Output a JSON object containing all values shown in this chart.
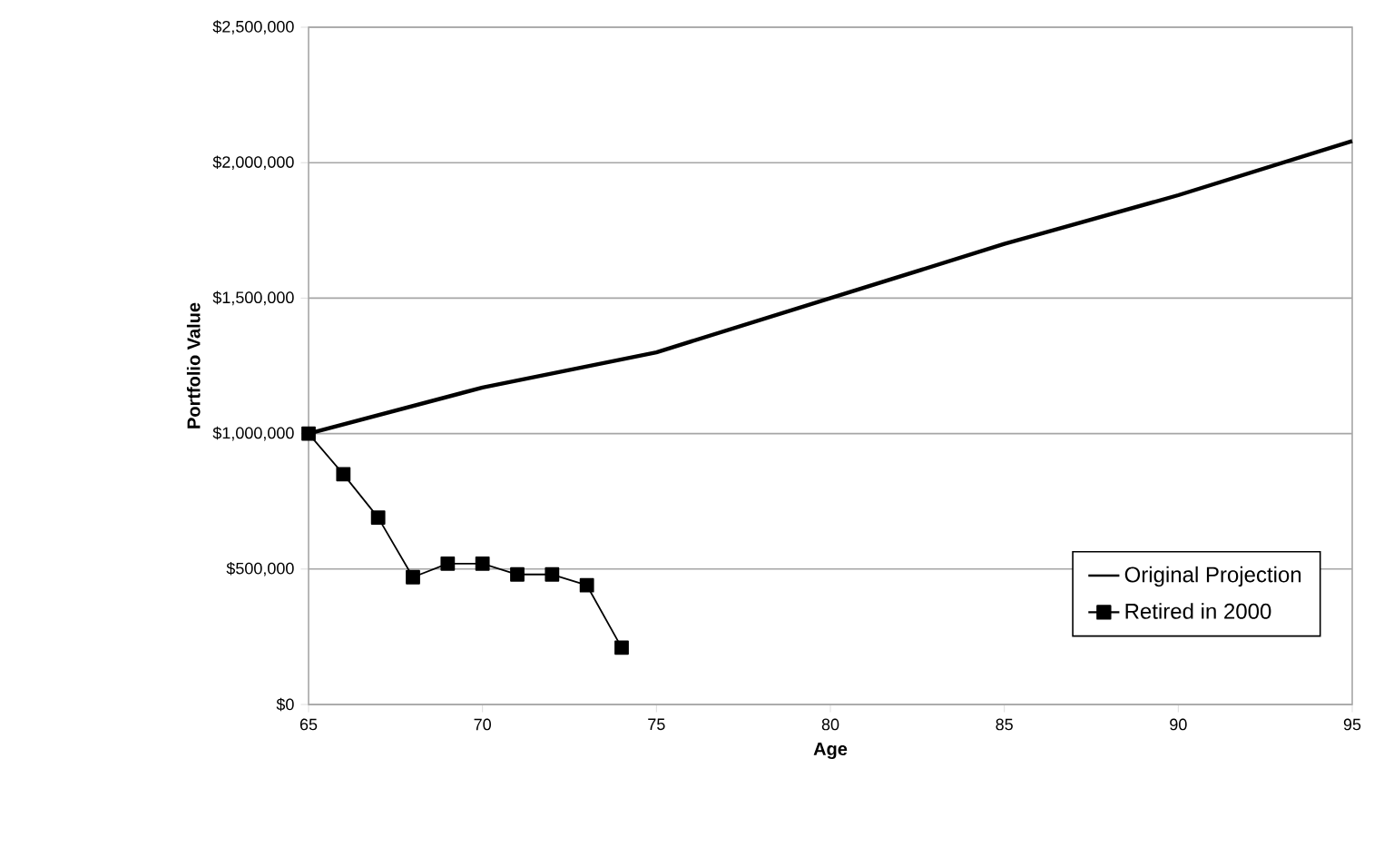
{
  "chart_data": {
    "type": "line",
    "xlabel": "Age",
    "ylabel": "Portfolio Value",
    "xlim": [
      65,
      95
    ],
    "xticks": [
      65,
      70,
      75,
      80,
      85,
      90,
      95
    ],
    "ylim": [
      0,
      2500000
    ],
    "yticks": [
      {
        "value": 0,
        "label": "$0"
      },
      {
        "value": 500000,
        "label": "$500,000"
      },
      {
        "value": 1000000,
        "label": "$1,000,000"
      },
      {
        "value": 1500000,
        "label": "$1,500,000"
      },
      {
        "value": 2000000,
        "label": "$2,000,000"
      },
      {
        "value": 2500000,
        "label": "$2,500,000"
      }
    ],
    "grid": "y",
    "legend": "bottom right",
    "series": [
      {
        "name": "Original Projection",
        "color": "#000000",
        "marker": "none",
        "x": [
          65,
          70,
          75,
          80,
          85,
          90,
          95
        ],
        "values": [
          1000000,
          1170000,
          1300000,
          1500000,
          1700000,
          1880000,
          2080000
        ]
      },
      {
        "name": "Retired in 2000",
        "color": "#000000",
        "marker": "square",
        "x": [
          65,
          66,
          67,
          68,
          69,
          70,
          71,
          72,
          73,
          74
        ],
        "values": [
          1000000,
          850000,
          690000,
          470000,
          520000,
          520000,
          480000,
          480000,
          440000,
          210000
        ]
      }
    ]
  }
}
